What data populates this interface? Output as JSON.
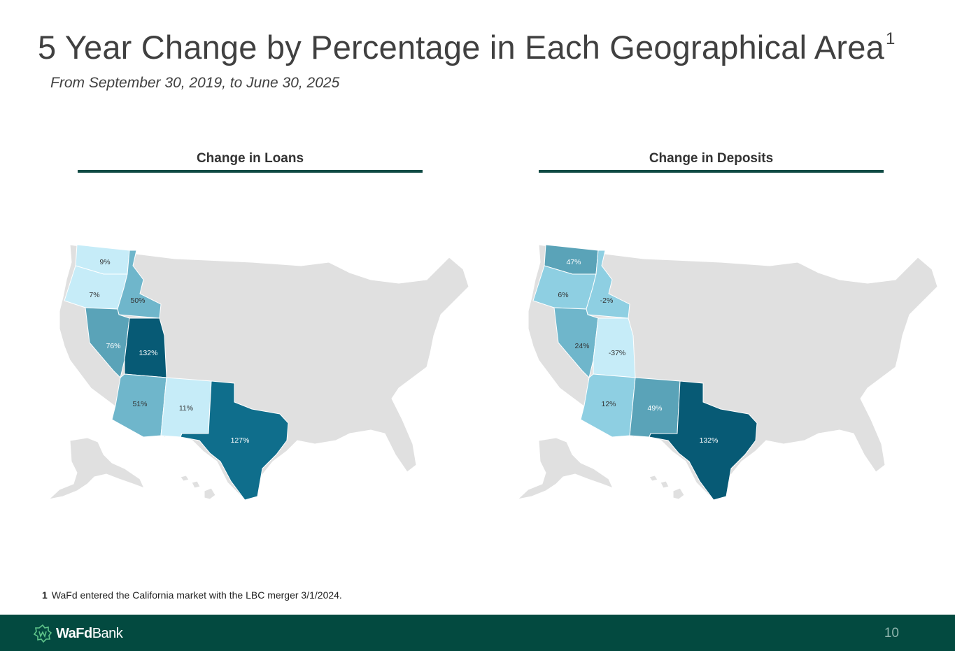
{
  "title": "5 Year Change by Percentage in Each Geographical Area",
  "title_superscript": "1",
  "subtitle": "From September 30, 2019, to June 30, 2025",
  "colors": {
    "background_state": "#e0e0e0",
    "scale_lightest": "#c6ecf8",
    "scale_light": "#8ecfe2",
    "scale_mid": "#6fb6cb",
    "scale_medium_dark": "#5aa3b8",
    "scale_dark": "#0f6e8c",
    "scale_darkest": "#075a75",
    "footer": "#034a40",
    "rule": "#0f4a44"
  },
  "panels": {
    "loans": {
      "heading": "Change in Loans",
      "states": {
        "WA": "9%",
        "OR": "7%",
        "ID": "50%",
        "NV": "76%",
        "UT": "132%",
        "AZ": "51%",
        "NM": "11%",
        "TX": "127%"
      }
    },
    "deposits": {
      "heading": "Change in Deposits",
      "states": {
        "WA": "47%",
        "OR": "6%",
        "ID": "-2%",
        "NV": "24%",
        "UT": "-37%",
        "AZ": "12%",
        "NM": "49%",
        "TX": "132%"
      }
    }
  },
  "footnote": {
    "number": "1",
    "text": "WaFd entered the California market with the LBC merger 3/1/2024."
  },
  "footer": {
    "logo_bold": "WaFd",
    "logo_regular": "Bank",
    "page_number": "10"
  }
}
